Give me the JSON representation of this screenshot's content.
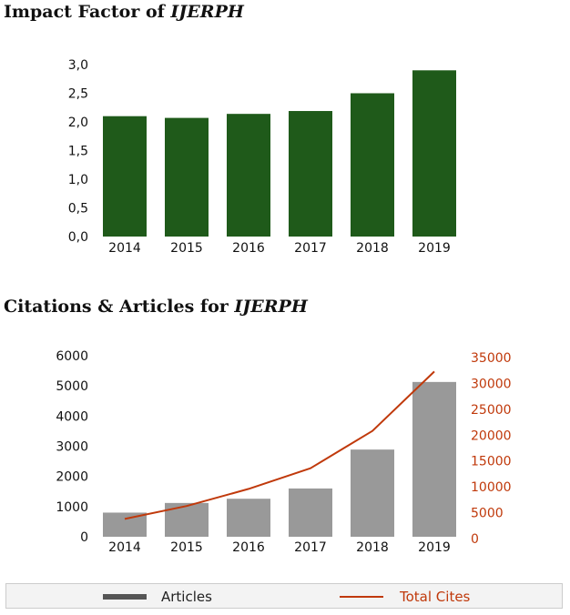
{
  "chart_data": [
    {
      "type": "bar",
      "title_prefix": "Impact Factor of ",
      "title_journal": "IJERPH",
      "categories": [
        "2014",
        "2015",
        "2016",
        "2017",
        "2018",
        "2019"
      ],
      "values": [
        2.1,
        2.07,
        2.14,
        2.19,
        2.5,
        2.9
      ],
      "ylim": [
        0,
        3.0
      ],
      "yticks": [
        "0,0",
        "0,5",
        "1,0",
        "1,5",
        "2,0",
        "2,5",
        "3,0"
      ],
      "bar_color": "#1f5a1a",
      "grid": false
    },
    {
      "type": "bar+line",
      "title_prefix": "Citations & Articles for ",
      "title_journal": "IJERPH",
      "categories": [
        "2014",
        "2015",
        "2016",
        "2017",
        "2018",
        "2019"
      ],
      "series": [
        {
          "name": "Articles",
          "type": "bar",
          "axis": "left",
          "values": [
            800,
            1120,
            1260,
            1600,
            2890,
            5130
          ],
          "color": "#999999"
        },
        {
          "name": "Total Cites",
          "type": "line",
          "axis": "right",
          "values": [
            3800,
            6300,
            9600,
            13600,
            20800,
            32300
          ],
          "color": "#c0390b"
        }
      ],
      "ylim_left": [
        0,
        6000
      ],
      "yticks_left": [
        "0",
        "1000",
        "2000",
        "3000",
        "4000",
        "5000",
        "6000"
      ],
      "ylim_right": [
        0,
        35000
      ],
      "yticks_right": [
        "0",
        "5000",
        "10000",
        "15000",
        "20000",
        "25000",
        "30000",
        "35000"
      ],
      "grid": false
    }
  ],
  "legend": {
    "articles_label": "Articles",
    "cites_label": "Total Cites",
    "articles_color": "#555555",
    "cites_color": "#c0390b"
  }
}
